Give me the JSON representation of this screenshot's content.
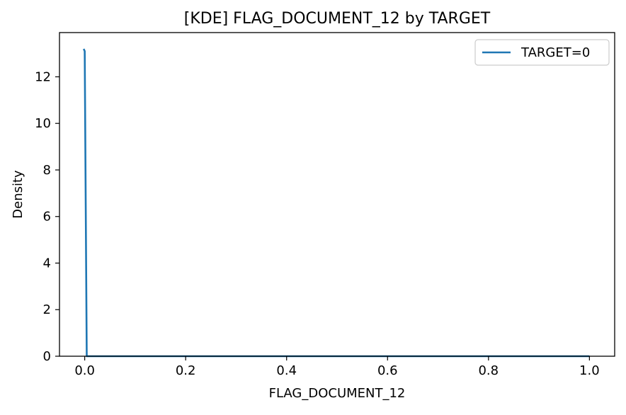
{
  "chart_data": {
    "type": "line",
    "title": "[KDE] FLAG_DOCUMENT_12 by TARGET",
    "xlabel": "FLAG_DOCUMENT_12",
    "ylabel": "Density",
    "xlim": [
      -0.05,
      1.05
    ],
    "ylim": [
      0,
      13.9
    ],
    "x_ticks": [
      0.0,
      0.2,
      0.4,
      0.6,
      0.8,
      1.0
    ],
    "x_tick_labels": [
      "0.0",
      "0.2",
      "0.4",
      "0.6",
      "0.8",
      "1.0"
    ],
    "y_ticks": [
      0,
      2,
      4,
      6,
      8,
      10,
      12
    ],
    "y_tick_labels": [
      "0",
      "2",
      "4",
      "6",
      "8",
      "10",
      "12"
    ],
    "grid": false,
    "legend_position": "top-right",
    "series": [
      {
        "name": "TARGET=0",
        "color": "#1f77b4",
        "points": [
          [
            -0.002,
            13.2
          ],
          [
            0.0,
            13.1
          ],
          [
            0.002,
            6.5
          ],
          [
            0.004,
            0.0
          ],
          [
            1.0,
            0.0
          ]
        ]
      }
    ]
  }
}
